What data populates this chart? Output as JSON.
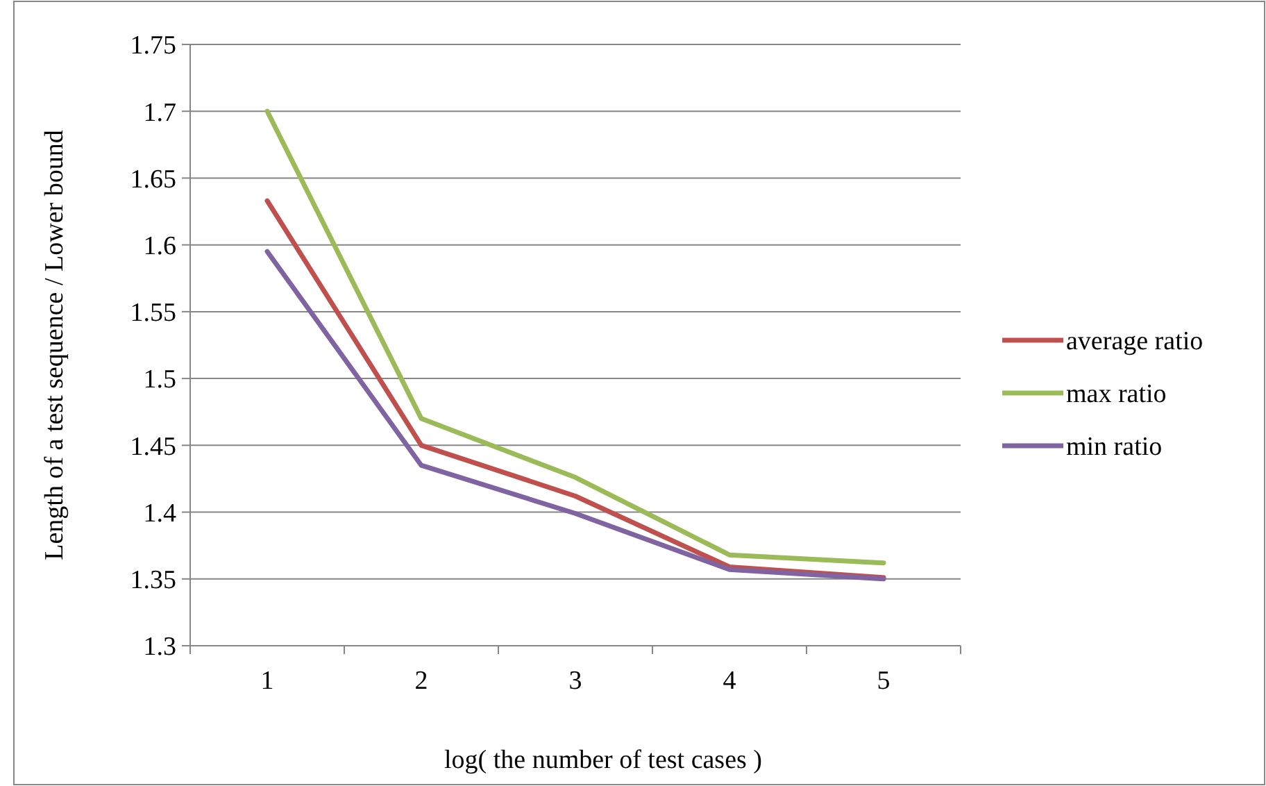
{
  "chart_data": {
    "type": "line",
    "xlabel": "log( the number of test cases )",
    "ylabel": "Length of a test sequence / Lower bound",
    "categories": [
      "1",
      "2",
      "3",
      "4",
      "5"
    ],
    "series": [
      {
        "name": "average ratio",
        "color": "#c0504d",
        "values": [
          1.633,
          1.45,
          1.412,
          1.359,
          1.351
        ]
      },
      {
        "name": "max ratio",
        "color": "#9bbb59",
        "values": [
          1.7,
          1.47,
          1.426,
          1.368,
          1.362
        ]
      },
      {
        "name": "min ratio",
        "color": "#8064a2",
        "values": [
          1.595,
          1.435,
          1.399,
          1.357,
          1.35
        ]
      }
    ],
    "ylim": [
      1.3,
      1.75
    ],
    "yticks": [
      1.3,
      1.35,
      1.4,
      1.45,
      1.5,
      1.55,
      1.6,
      1.65,
      1.7,
      1.75
    ],
    "grid": "y",
    "legend": "right",
    "marker": "none",
    "line_style": "solid"
  }
}
